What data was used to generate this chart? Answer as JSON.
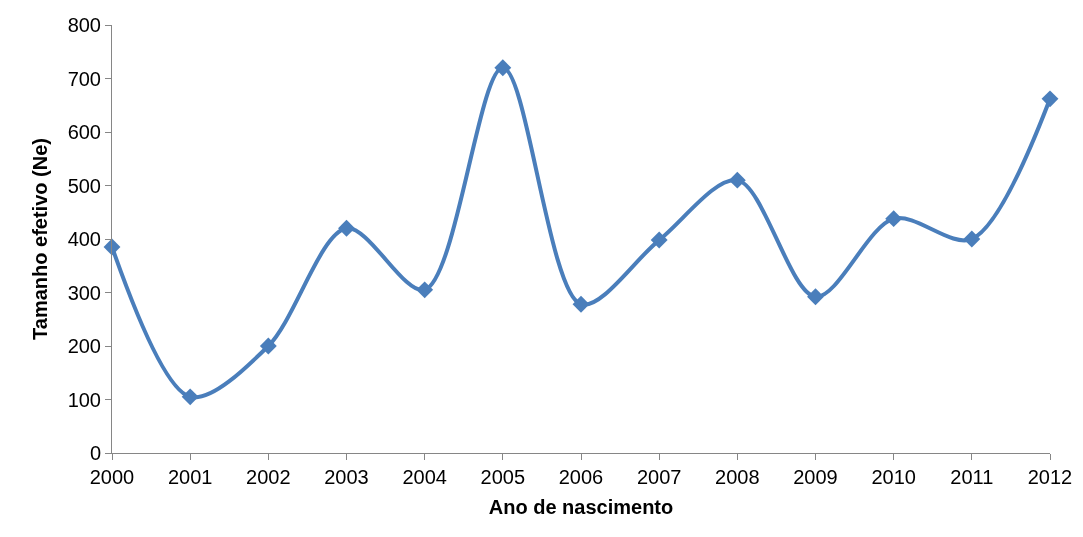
{
  "chart_data": {
    "type": "line",
    "xlabel": "Ano de nascimento",
    "ylabel": "Tamanho efetivo (Ne)",
    "x": [
      2000,
      2001,
      2002,
      2003,
      2004,
      2005,
      2006,
      2007,
      2008,
      2009,
      2010,
      2011,
      2012
    ],
    "series": [
      {
        "color": "#4a7ebb",
        "values": [
          385,
          105,
          200,
          420,
          305,
          720,
          278,
          398,
          510,
          292,
          438,
          400,
          662
        ]
      }
    ],
    "xlim": [
      2000,
      2012
    ],
    "xticks": [
      2000,
      2001,
      2002,
      2003,
      2004,
      2005,
      2006,
      2007,
      2008,
      2009,
      2010,
      2011,
      2012
    ],
    "ylim": [
      0,
      800
    ],
    "yticks": [
      0,
      100,
      200,
      300,
      400,
      500,
      600,
      700,
      800
    ],
    "grid": false,
    "marker": "diamond",
    "line_style": "solid"
  }
}
